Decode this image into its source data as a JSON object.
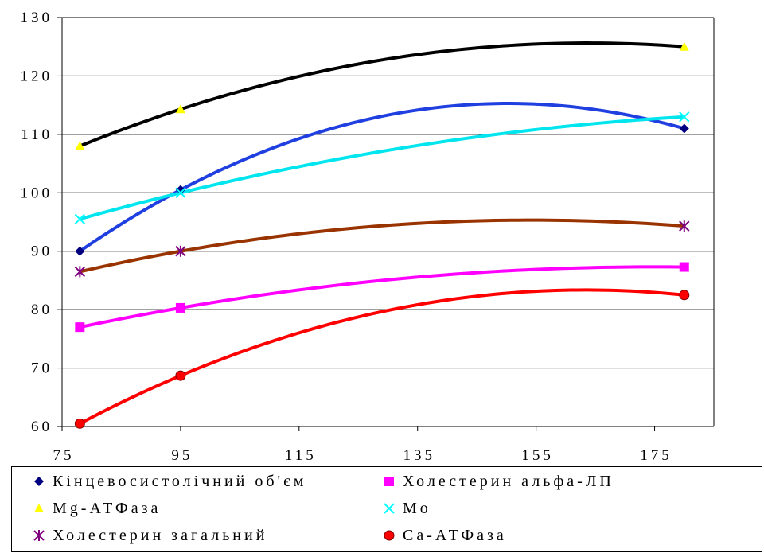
{
  "chart_data": {
    "type": "line",
    "title": "",
    "xlabel": "",
    "ylabel": "",
    "xlim": [
      75,
      185
    ],
    "ylim": [
      60,
      130
    ],
    "x_ticks": [
      75,
      95,
      115,
      135,
      155,
      175
    ],
    "x_tick_labels": [
      "75",
      "95",
      "115",
      "135",
      "155",
      "175"
    ],
    "y_ticks": [
      60,
      70,
      80,
      90,
      100,
      110,
      120,
      130
    ],
    "y_tick_labels": [
      "60",
      "70",
      "80",
      "90",
      "100",
      "110",
      "120",
      "130"
    ],
    "grid": "horizontal",
    "legend_position": "bottom",
    "series": [
      {
        "name": "Кінцевосистолічний об'єм",
        "marker": "diamond",
        "marker_color": "#000080",
        "line_color": "#1f3fe0",
        "x": [
          78,
          95,
          180
        ],
        "values": [
          90,
          100.5,
          111
        ]
      },
      {
        "name": "Холестерин альфа-ЛП",
        "marker": "square",
        "marker_color": "#ff00ff",
        "line_color": "#ff00ff",
        "x": [
          78,
          95,
          180
        ],
        "values": [
          77,
          80.3,
          87.3
        ]
      },
      {
        "name": "Mg-АТФаза",
        "marker": "triangle",
        "marker_color": "#ffff00",
        "line_color": "#000000",
        "x": [
          78,
          95,
          180
        ],
        "values": [
          108,
          114.3,
          125
        ]
      },
      {
        "name": "Mo",
        "marker": "x",
        "marker_color": "#00ffff",
        "line_color": "#00e5ee",
        "x": [
          78,
          95,
          180
        ],
        "values": [
          95.5,
          100,
          113
        ]
      },
      {
        "name": "Холестерин загальний",
        "marker": "star",
        "marker_color": "#800080",
        "line_color": "#993300",
        "x": [
          78,
          95,
          180
        ],
        "values": [
          86.5,
          90,
          94.3
        ]
      },
      {
        "name": "Са-АТФаза",
        "marker": "circle",
        "marker_color": "#ff0000",
        "line_color": "#ff0000",
        "x": [
          78,
          95,
          180
        ],
        "values": [
          60.5,
          68.7,
          82.5
        ]
      }
    ]
  }
}
